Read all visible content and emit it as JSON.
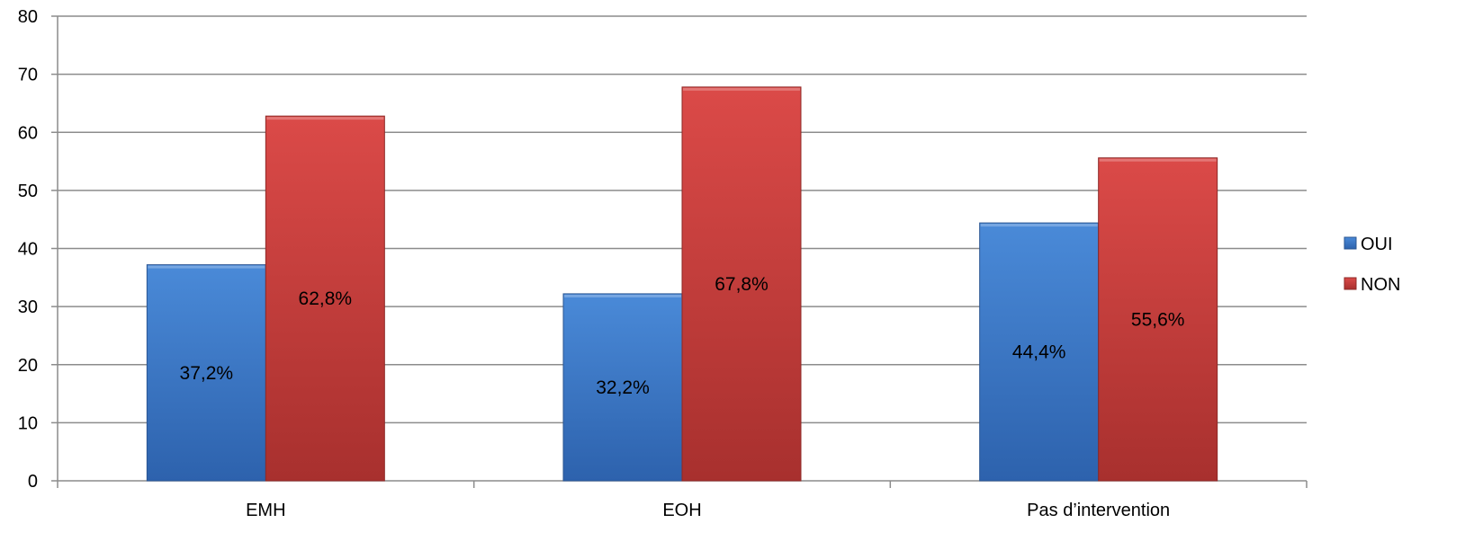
{
  "chart_data": {
    "type": "bar",
    "title": "",
    "xlabel": "",
    "ylabel": "",
    "categories": [
      "EMH",
      "EOH",
      "Pas d’intervention"
    ],
    "series": [
      {
        "name": "OUI",
        "values": [
          37.2,
          32.2,
          44.4
        ],
        "labels": [
          "37,2%",
          "32,2%",
          "44,4%"
        ],
        "color": "#3f7fd0"
      },
      {
        "name": "NON",
        "values": [
          62.8,
          67.8,
          55.6
        ],
        "labels": [
          "62,8%",
          "67,8%",
          "55,6%"
        ],
        "color": "#d34444"
      }
    ],
    "ylim": [
      0,
      80
    ],
    "yticks": [
      0,
      10,
      20,
      30,
      40,
      50,
      60,
      70,
      80
    ],
    "grid": true,
    "legend": "right"
  }
}
